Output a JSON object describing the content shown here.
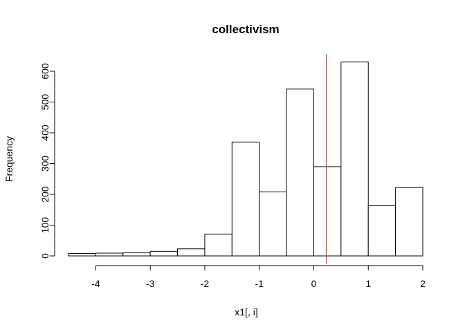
{
  "chart_data": {
    "type": "bar",
    "title": "collectivism",
    "xlabel": "x1[, i]",
    "ylabel": "Frequency",
    "bins": [
      {
        "start": -4.5,
        "end": -4.0,
        "count": 8
      },
      {
        "start": -4.0,
        "end": -3.5,
        "count": 9
      },
      {
        "start": -3.5,
        "end": -3.0,
        "count": 10
      },
      {
        "start": -3.0,
        "end": -2.5,
        "count": 15
      },
      {
        "start": -2.5,
        "end": -2.0,
        "count": 23
      },
      {
        "start": -2.0,
        "end": -1.5,
        "count": 71
      },
      {
        "start": -1.5,
        "end": -1.0,
        "count": 370
      },
      {
        "start": -1.0,
        "end": -0.5,
        "count": 208
      },
      {
        "start": -0.5,
        "end": 0.0,
        "count": 542
      },
      {
        "start": 0.0,
        "end": 0.5,
        "count": 290
      },
      {
        "start": 0.5,
        "end": 1.0,
        "count": 630
      },
      {
        "start": 1.0,
        "end": 1.5,
        "count": 163
      },
      {
        "start": 1.5,
        "end": 2.0,
        "count": 222
      }
    ],
    "xlim": [
      -4.5,
      2.0
    ],
    "ylim": [
      0,
      600
    ],
    "x_ticks": [
      -4,
      -3,
      -2,
      -1,
      0,
      1,
      2
    ],
    "y_ticks": [
      0,
      100,
      200,
      300,
      400,
      500,
      600
    ],
    "x_tick_labels": [
      "-4",
      "-3",
      "-2",
      "-1",
      "0",
      "1",
      "2"
    ],
    "y_tick_labels": [
      "0",
      "100",
      "200",
      "300",
      "400",
      "500",
      "600"
    ],
    "reference_line": {
      "x": 0.23,
      "color": "#e8413c"
    },
    "bar_fill": "#ffffff",
    "bar_stroke": "#000000",
    "grid": false,
    "legend": "none"
  }
}
